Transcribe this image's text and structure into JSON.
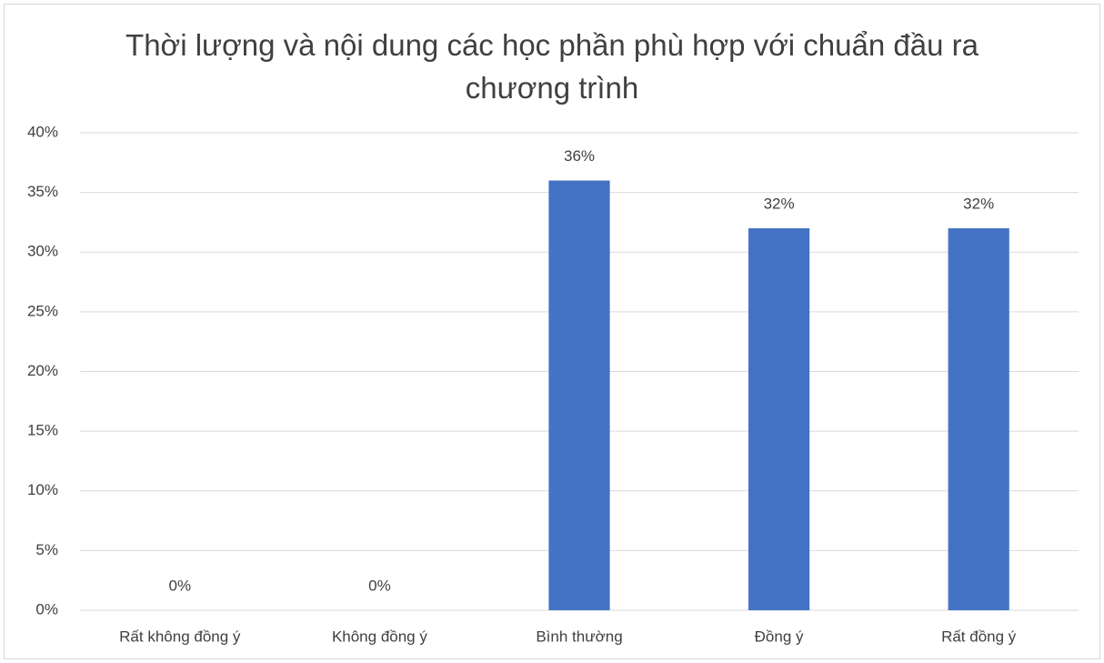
{
  "chart_data": {
    "type": "bar",
    "title": "Thời lượng và nội dung các học phần phù hợp với chuẩn đầu ra chương trình",
    "categories": [
      "Rất không đồng ý",
      "Không đồng ý",
      "Bình thường",
      "Đồng ý",
      "Rất đồng ý"
    ],
    "values": [
      0,
      0,
      36,
      32,
      32
    ],
    "value_labels": [
      "0%",
      "0%",
      "36%",
      "32%",
      "32%"
    ],
    "color": "#4472c4",
    "ylim": [
      0,
      40
    ],
    "yticks": [
      {
        "value": 0,
        "label": "0%"
      },
      {
        "value": 5,
        "label": "5%"
      },
      {
        "value": 10,
        "label": "10%"
      },
      {
        "value": 15,
        "label": "15%"
      },
      {
        "value": 20,
        "label": "20%"
      },
      {
        "value": 25,
        "label": "25%"
      },
      {
        "value": 30,
        "label": "30%"
      },
      {
        "value": 35,
        "label": "35%"
      },
      {
        "value": 40,
        "label": "40%"
      }
    ],
    "grid": true
  }
}
